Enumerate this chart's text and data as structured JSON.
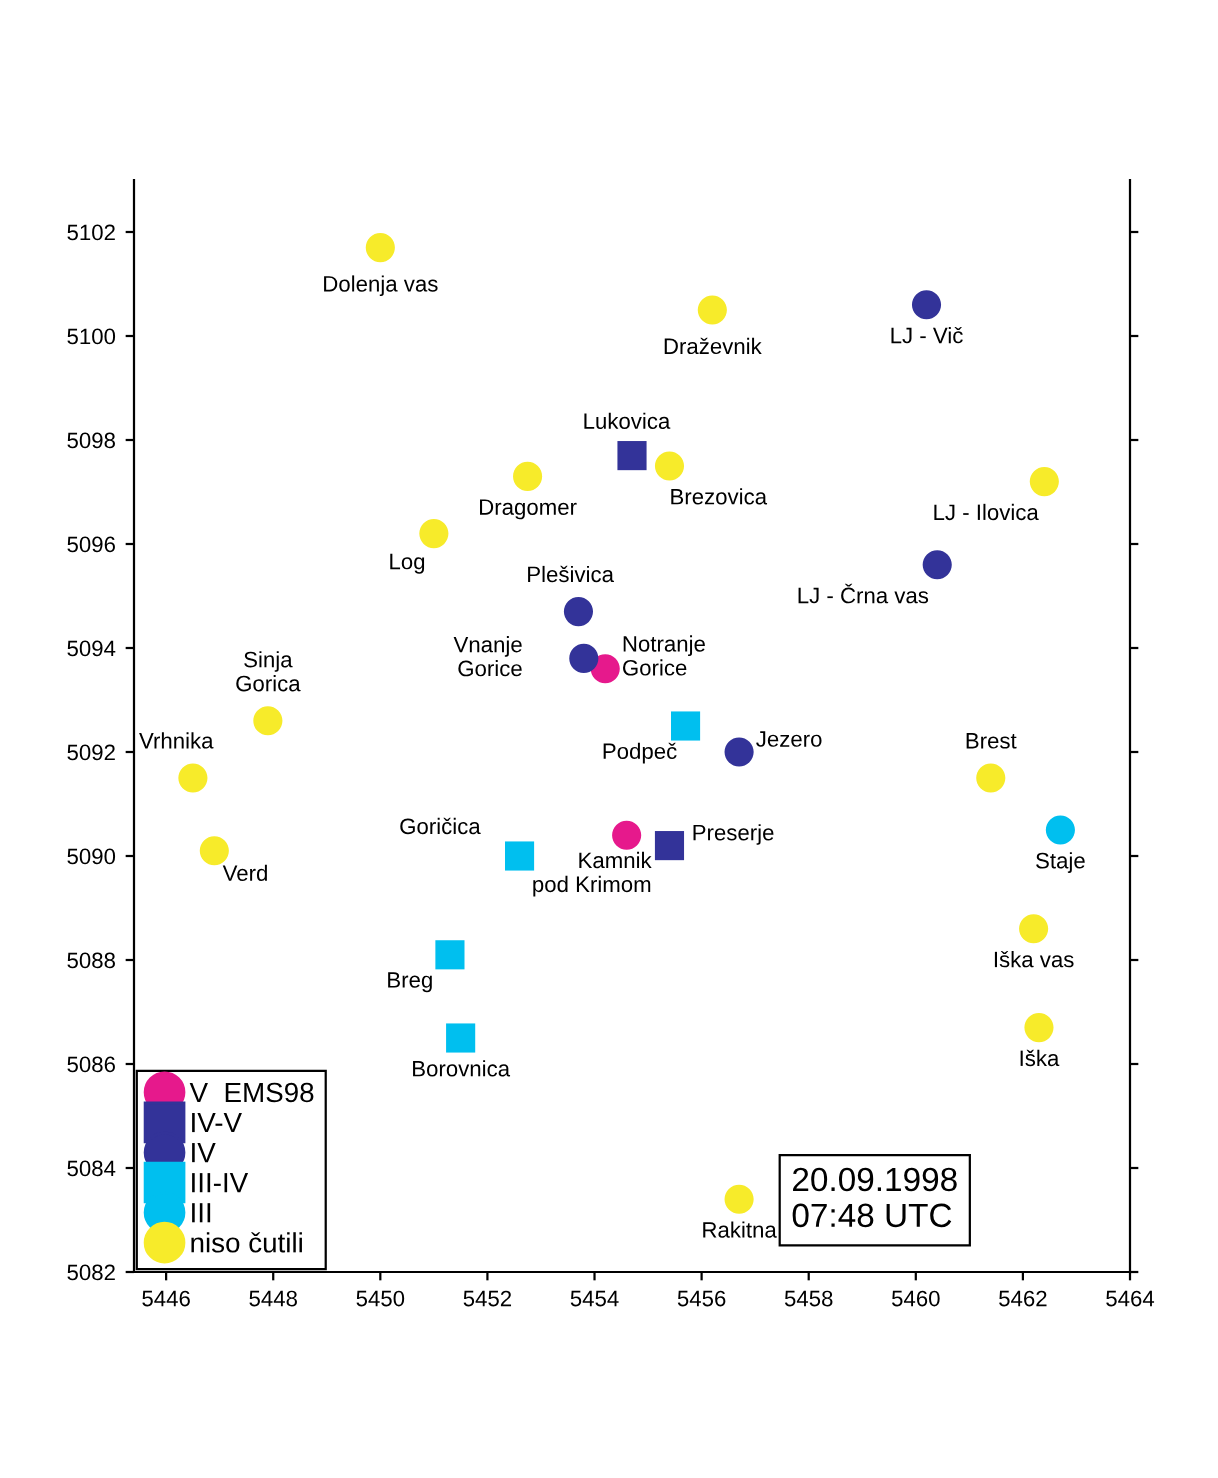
{
  "chart_data": {
    "type": "scatter",
    "xlim": [
      5445.4,
      5464
    ],
    "ylim": [
      5082,
      5103
    ],
    "xticks": [
      5446,
      5448,
      5450,
      5452,
      5454,
      5456,
      5458,
      5460,
      5462,
      5464
    ],
    "yticks": [
      5082,
      5084,
      5086,
      5088,
      5090,
      5092,
      5094,
      5096,
      5098,
      5100,
      5102
    ],
    "grid": false,
    "legend": "bottom left",
    "series": [
      {
        "name": "V  EMS98",
        "color": "#e6198c",
        "marker": "circle",
        "x": [
          5454.2,
          5454.6
        ],
        "values": [
          5093.6,
          5090.4
        ]
      },
      {
        "name": "IV-V",
        "color": "#333399",
        "marker": "square",
        "x": [
          5454.7,
          5455.4
        ],
        "values": [
          5097.7,
          5090.2
        ]
      },
      {
        "name": "IV",
        "color": "#333399",
        "marker": "circle",
        "x": [
          5460.2,
          5460.4,
          5453.7,
          5453.8,
          5456.7
        ],
        "values": [
          5100.6,
          5095.6,
          5094.7,
          5093.8,
          5092.0
        ]
      },
      {
        "name": "III-IV",
        "color": "#00bfef",
        "marker": "square",
        "x": [
          5455.7,
          5452.6,
          5451.3,
          5451.5
        ],
        "values": [
          5092.5,
          5090.0,
          5088.1,
          5086.5
        ]
      },
      {
        "name": "III",
        "color": "#00bfef",
        "marker": "circle",
        "x": [
          5462.7
        ],
        "values": [
          5090.5
        ]
      },
      {
        "name": "niso čutili",
        "color": "#f7eb2a",
        "marker": "circle",
        "x": [
          5450.0,
          5456.2,
          5455.4,
          5452.75,
          5451.0,
          5462.4,
          5447.9,
          5446.5,
          5446.9,
          5461.4,
          5462.2,
          5462.3,
          5456.7
        ],
        "values": [
          5101.7,
          5100.5,
          5097.5,
          5097.3,
          5096.2,
          5097.2,
          5092.6,
          5091.5,
          5090.1,
          5091.5,
          5088.6,
          5086.7,
          5083.4
        ]
      }
    ],
    "annotations": [
      {
        "text": "Dolenja vas",
        "x": 5450.0,
        "y": 5101.7
      },
      {
        "text": "Draževnik",
        "x": 5456.2,
        "y": 5100.5
      },
      {
        "text": "LJ - Vič",
        "x": 5460.2,
        "y": 5100.6
      },
      {
        "text": "Lukovica",
        "x": 5454.7,
        "y": 5097.7
      },
      {
        "text": "Brezovica",
        "x": 5455.4,
        "y": 5097.5
      },
      {
        "text": "Dragomer",
        "x": 5452.75,
        "y": 5097.3
      },
      {
        "text": "Log",
        "x": 5451.0,
        "y": 5096.2
      },
      {
        "text": "LJ - Ilovica",
        "x": 5462.4,
        "y": 5097.2
      },
      {
        "text": "LJ - Črna vas",
        "x": 5460.4,
        "y": 5095.6
      },
      {
        "text": "Plešivica",
        "x": 5453.7,
        "y": 5094.7
      },
      {
        "text": "Vnanje\nGorice",
        "x": 5453.8,
        "y": 5093.8
      },
      {
        "text": "Notranje\nGorice",
        "x": 5454.2,
        "y": 5093.6
      },
      {
        "text": "Sinja\nGorica",
        "x": 5447.9,
        "y": 5092.6
      },
      {
        "text": "Podpeč",
        "x": 5455.7,
        "y": 5092.5
      },
      {
        "text": "Jezero",
        "x": 5456.7,
        "y": 5092.0
      },
      {
        "text": "Vrhnika",
        "x": 5446.5,
        "y": 5091.5
      },
      {
        "text": "Brest",
        "x": 5461.4,
        "y": 5091.5
      },
      {
        "text": "Goričica",
        "x": 5452.6,
        "y": 5090.0
      },
      {
        "text": "Kamnik\npod Krimom",
        "x": 5454.6,
        "y": 5090.4
      },
      {
        "text": "Preserje",
        "x": 5455.4,
        "y": 5090.2
      },
      {
        "text": "Staje",
        "x": 5462.7,
        "y": 5090.5
      },
      {
        "text": "Verd",
        "x": 5446.9,
        "y": 5090.1
      },
      {
        "text": "Breg",
        "x": 5451.3,
        "y": 5088.1
      },
      {
        "text": "Iška vas",
        "x": 5462.2,
        "y": 5088.6
      },
      {
        "text": "Borovnica",
        "x": 5451.5,
        "y": 5086.5
      },
      {
        "text": "Iška",
        "x": 5462.3,
        "y": 5086.7
      },
      {
        "text": "Rakitna",
        "x": 5456.7,
        "y": 5083.4
      },
      "20.09.1998\n07:48 UTC"
    ]
  }
}
